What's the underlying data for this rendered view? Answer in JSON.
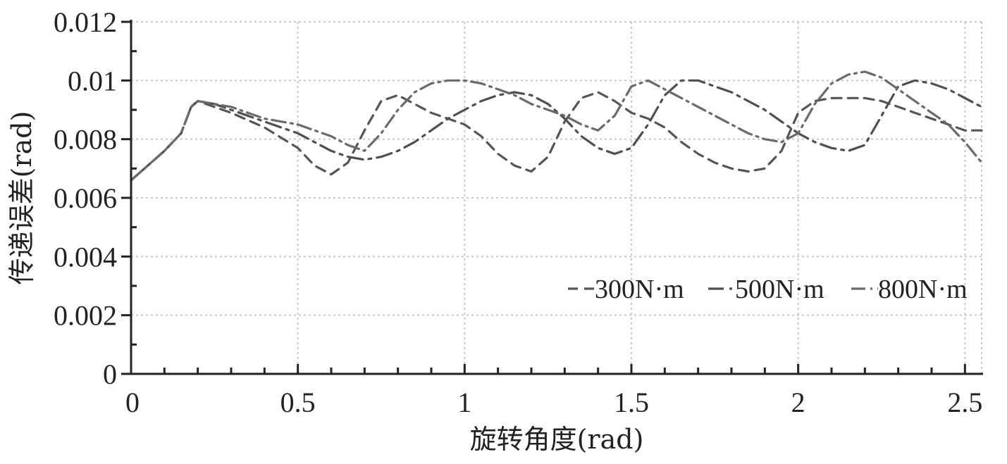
{
  "chart_data": {
    "type": "line",
    "xlabel": "旋转角度(rad)",
    "ylabel": "传递误差(rad)",
    "xlim": [
      0,
      2.55
    ],
    "ylim": [
      0,
      0.012
    ],
    "xticks": [
      "0",
      "0.5",
      "1",
      "1.5",
      "2",
      "2.5"
    ],
    "yticks": [
      "0",
      "0.002",
      "0.004",
      "0.006",
      "0.008",
      "0.01",
      "0.012"
    ],
    "grid": true,
    "legend_position": "bottom-right",
    "series": [
      {
        "name": "300N·m",
        "dash": "dash",
        "x": [
          0,
          0.05,
          0.1,
          0.15,
          0.18,
          0.2,
          0.25,
          0.3,
          0.4,
          0.5,
          0.55,
          0.6,
          0.65,
          0.7,
          0.75,
          0.8,
          0.85,
          0.9,
          0.95,
          1.0,
          1.05,
          1.1,
          1.15,
          1.2,
          1.25,
          1.3,
          1.35,
          1.4,
          1.45,
          1.5,
          1.55,
          1.6,
          1.65,
          1.7,
          1.75,
          1.8,
          1.85,
          1.9,
          1.95,
          2.0,
          2.05,
          2.1,
          2.15,
          2.2,
          2.25,
          2.3,
          2.35,
          2.4,
          2.45,
          2.5,
          2.55
        ],
        "y": [
          0.0066,
          0.0071,
          0.0076,
          0.0082,
          0.0091,
          0.0093,
          0.0091,
          0.0089,
          0.0084,
          0.0077,
          0.0071,
          0.0068,
          0.0072,
          0.0083,
          0.0093,
          0.0095,
          0.0092,
          0.0089,
          0.0087,
          0.0085,
          0.0081,
          0.0075,
          0.0071,
          0.0069,
          0.0074,
          0.0086,
          0.0094,
          0.0096,
          0.0093,
          0.0089,
          0.0087,
          0.0084,
          0.0079,
          0.0075,
          0.0072,
          0.007,
          0.0069,
          0.007,
          0.0076,
          0.0089,
          0.0093,
          0.0094,
          0.0094,
          0.0094,
          0.0093,
          0.0091,
          0.0089,
          0.0087,
          0.0085,
          0.0083,
          0.0083
        ]
      },
      {
        "name": "500N·m",
        "dash": "dash-long",
        "x": [
          0,
          0.05,
          0.1,
          0.15,
          0.18,
          0.2,
          0.25,
          0.3,
          0.4,
          0.5,
          0.55,
          0.6,
          0.65,
          0.7,
          0.75,
          0.8,
          0.85,
          0.9,
          0.95,
          1.0,
          1.05,
          1.1,
          1.15,
          1.2,
          1.25,
          1.3,
          1.35,
          1.4,
          1.45,
          1.5,
          1.55,
          1.6,
          1.65,
          1.7,
          1.75,
          1.8,
          1.85,
          1.9,
          1.95,
          2.0,
          2.05,
          2.1,
          2.15,
          2.2,
          2.25,
          2.3,
          2.35,
          2.4,
          2.45,
          2.5,
          2.55
        ],
        "y": [
          0.0066,
          0.0071,
          0.0076,
          0.0082,
          0.0091,
          0.0093,
          0.0092,
          0.009,
          0.0086,
          0.0082,
          0.0079,
          0.0076,
          0.0074,
          0.0073,
          0.0074,
          0.0076,
          0.0079,
          0.0083,
          0.0087,
          0.009,
          0.0093,
          0.0095,
          0.0096,
          0.0095,
          0.0092,
          0.0087,
          0.0081,
          0.0077,
          0.0075,
          0.0077,
          0.0085,
          0.0095,
          0.01,
          0.01,
          0.0098,
          0.0096,
          0.0093,
          0.009,
          0.0086,
          0.0082,
          0.0079,
          0.0077,
          0.0076,
          0.0078,
          0.0088,
          0.0098,
          0.01,
          0.0099,
          0.0097,
          0.0094,
          0.0091
        ]
      },
      {
        "name": "800N·m",
        "dash": "dash-dot",
        "x": [
          0,
          0.05,
          0.1,
          0.15,
          0.18,
          0.2,
          0.25,
          0.3,
          0.4,
          0.5,
          0.55,
          0.6,
          0.65,
          0.7,
          0.75,
          0.8,
          0.85,
          0.9,
          0.95,
          1.0,
          1.05,
          1.1,
          1.15,
          1.2,
          1.25,
          1.3,
          1.35,
          1.4,
          1.45,
          1.5,
          1.55,
          1.6,
          1.65,
          1.7,
          1.75,
          1.8,
          1.85,
          1.9,
          1.95,
          2.0,
          2.05,
          2.1,
          2.15,
          2.2,
          2.25,
          2.3,
          2.35,
          2.4,
          2.45,
          2.5,
          2.55
        ],
        "y": [
          0.0066,
          0.0071,
          0.0076,
          0.0082,
          0.0091,
          0.0093,
          0.0092,
          0.0091,
          0.0087,
          0.0085,
          0.0083,
          0.0081,
          0.0078,
          0.0076,
          0.0082,
          0.009,
          0.0096,
          0.0099,
          0.01,
          0.01,
          0.0099,
          0.0097,
          0.0095,
          0.0092,
          0.009,
          0.0088,
          0.0085,
          0.0083,
          0.0088,
          0.0098,
          0.01,
          0.0097,
          0.0094,
          0.0091,
          0.0088,
          0.0085,
          0.0082,
          0.008,
          0.0079,
          0.0082,
          0.0092,
          0.0099,
          0.0102,
          0.0103,
          0.0101,
          0.0097,
          0.0093,
          0.0089,
          0.0085,
          0.0079,
          0.0072
        ]
      }
    ]
  }
}
